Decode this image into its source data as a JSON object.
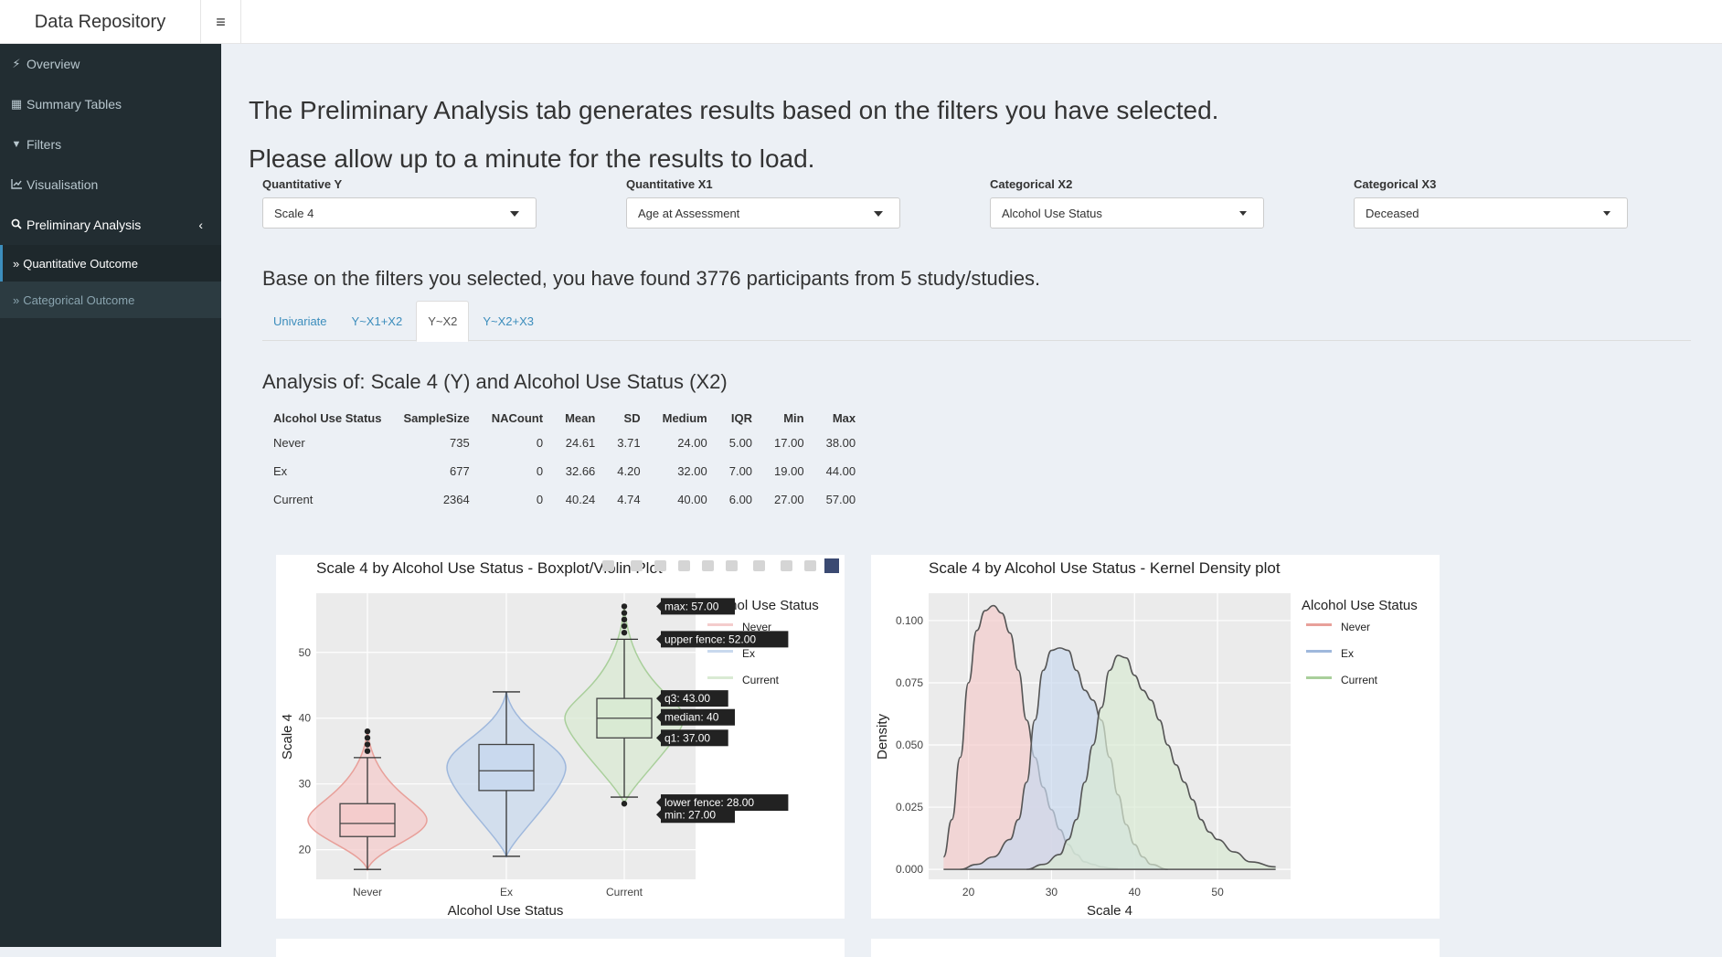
{
  "header": {
    "brand": "Data Repository",
    "menu_icon": "hamburger-icon"
  },
  "sidebar": {
    "items": [
      {
        "label": "Overview",
        "icon": "bolt-icon",
        "glyph": "⚡"
      },
      {
        "label": "Summary Tables",
        "icon": "table-icon",
        "glyph": "▦"
      },
      {
        "label": "Filters",
        "icon": "filter-icon",
        "glyph": "▼"
      },
      {
        "label": "Visualisation",
        "icon": "line-chart-icon",
        "glyph": "📈"
      },
      {
        "label": "Preliminary Analysis",
        "icon": "search-icon",
        "glyph": "🔍"
      }
    ],
    "sub_items": [
      {
        "label": "Quantitative Outcome",
        "icon": "double-chevron-right-icon",
        "active": true
      },
      {
        "label": "Categorical Outcome",
        "icon": "double-chevron-right-icon",
        "active": false
      }
    ]
  },
  "main": {
    "intro_line1": "The Preliminary Analysis tab generates results based on the filters you have selected.",
    "intro_line2": "Please allow up to a minute for the results to load.",
    "filters": [
      {
        "label": "Quantitative Y",
        "value": "Scale 4"
      },
      {
        "label": "Quantitative X1",
        "value": "Age at Assessment"
      },
      {
        "label": "Categorical X2",
        "value": "Alcohol Use Status"
      },
      {
        "label": "Categorical X3",
        "value": "Deceased"
      }
    ],
    "found_text": "Base on the filters you selected, you have found 3776 participants from 5 study/studies.",
    "tabs": [
      {
        "label": "Univariate",
        "active": false
      },
      {
        "label": "Y~X1+X2",
        "active": false
      },
      {
        "label": "Y~X2",
        "active": true
      },
      {
        "label": "Y~X2+X3",
        "active": false
      }
    ],
    "analysis_title": "Analysis of: Scale 4 (Y) and Alcohol Use Status (X2)",
    "table": {
      "headers": [
        "Alcohol Use Status",
        "SampleSize",
        "NACount",
        "Mean",
        "SD",
        "Medium",
        "IQR",
        "Min",
        "Max"
      ],
      "rows": [
        [
          "Never",
          "735",
          "0",
          "24.61",
          "3.71",
          "24.00",
          "5.00",
          "17.00",
          "38.00"
        ],
        [
          "Ex",
          "677",
          "0",
          "32.66",
          "4.20",
          "32.00",
          "7.00",
          "19.00",
          "44.00"
        ],
        [
          "Current",
          "2364",
          "0",
          "40.24",
          "4.74",
          "40.00",
          "6.00",
          "27.00",
          "57.00"
        ]
      ]
    }
  },
  "colors": {
    "never": "#f4cccc",
    "ex": "#c9d9ee",
    "current": "#d9ead3",
    "never_line": "#e8a09a",
    "ex_line": "#9fb8dc",
    "current_line": "#a9cf9b"
  },
  "chart_data": [
    {
      "type": "box",
      "title": "Scale 4 by Alcohol Use Status - Boxplot/Violin Plot",
      "xlabel": "Alcohol Use Status",
      "ylabel": "Scale 4",
      "categories": [
        "Never",
        "Ex",
        "Current"
      ],
      "yticks": [
        20,
        30,
        40,
        50
      ],
      "ylim": [
        15.5,
        59
      ],
      "legend_title": "Alcohol Use Status",
      "legend": [
        "Never",
        "Ex",
        "Current"
      ],
      "boxes": [
        {
          "name": "Never",
          "min": 17,
          "lower_fence": 17,
          "q1": 22,
          "median": 24,
          "q3": 27,
          "upper_fence": 34,
          "max": 38,
          "outliers": [
            35,
            36,
            37,
            38
          ]
        },
        {
          "name": "Ex",
          "min": 19,
          "lower_fence": 19,
          "q1": 29,
          "median": 32,
          "q3": 36,
          "upper_fence": 44,
          "max": 44,
          "outliers": []
        },
        {
          "name": "Current",
          "min": 27,
          "lower_fence": 28,
          "q1": 37,
          "median": 40,
          "q3": 43,
          "upper_fence": 52,
          "max": 57,
          "outliers": [
            27,
            53,
            54,
            55,
            56,
            57
          ]
        }
      ],
      "hover_labels": [
        "max: 57.00",
        "upper fence: 52.00",
        "q3: 43.00",
        "median: 40",
        "q1: 37.00",
        "lower fence: 28.00",
        "min: 27.00"
      ]
    },
    {
      "type": "area",
      "title": "Scale 4 by Alcohol Use Status - Kernel Density plot",
      "xlabel": "Scale 4",
      "ylabel": "Density",
      "xticks": [
        20,
        30,
        40,
        50
      ],
      "yticks": [
        "0.000",
        "0.025",
        "0.050",
        "0.075",
        "0.100"
      ],
      "xlim": [
        15.2,
        58.8
      ],
      "ylim": [
        -0.004,
        0.111
      ],
      "legend_title": "Alcohol Use Status",
      "series": [
        {
          "name": "Never",
          "x": [
            17,
            18,
            19,
            20,
            21,
            22,
            23,
            24,
            25,
            26,
            27,
            28,
            29,
            30,
            31,
            32,
            33,
            34,
            35,
            36,
            37,
            38
          ],
          "y": [
            0.005,
            0.02,
            0.045,
            0.075,
            0.096,
            0.104,
            0.106,
            0.103,
            0.095,
            0.08,
            0.06,
            0.045,
            0.033,
            0.024,
            0.016,
            0.01,
            0.006,
            0.003,
            0.002,
            0.001,
            0.0005,
            0.0002
          ]
        },
        {
          "name": "Ex",
          "x": [
            19,
            21,
            23,
            25,
            26,
            27,
            28,
            29,
            30,
            31,
            32,
            33,
            34,
            35,
            36,
            37,
            38,
            39,
            40,
            41,
            42,
            44
          ],
          "y": [
            0.0,
            0.002,
            0.005,
            0.012,
            0.02,
            0.035,
            0.06,
            0.08,
            0.088,
            0.089,
            0.088,
            0.08,
            0.072,
            0.068,
            0.06,
            0.045,
            0.03,
            0.018,
            0.01,
            0.005,
            0.002,
            0.0
          ]
        },
        {
          "name": "Current",
          "x": [
            27,
            29,
            31,
            32,
            33,
            34,
            35,
            36,
            37,
            38,
            39,
            40,
            41,
            42,
            43,
            44,
            45,
            46,
            47,
            48,
            49,
            50,
            52,
            54,
            57
          ],
          "y": [
            0.0,
            0.002,
            0.006,
            0.012,
            0.02,
            0.035,
            0.05,
            0.065,
            0.08,
            0.086,
            0.085,
            0.078,
            0.072,
            0.068,
            0.06,
            0.05,
            0.042,
            0.035,
            0.028,
            0.02,
            0.015,
            0.012,
            0.007,
            0.003,
            0.001
          ]
        }
      ]
    }
  ]
}
